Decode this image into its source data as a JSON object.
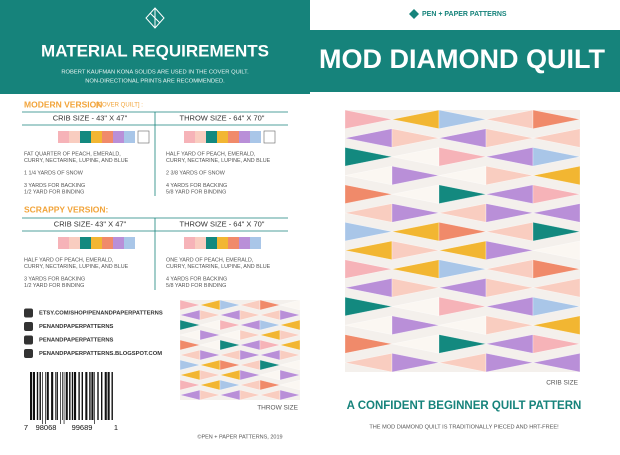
{
  "left": {
    "header": {
      "title": "MATERIAL REQUIREMENTS",
      "note_lines": [
        "ROBERT KAUFMAN KONA SOLIDS ARE USED IN THE COVER QUILT.",
        "NON-DIRECTIONAL PRINTS ARE RECOMMENDED."
      ]
    },
    "modern": {
      "label": "MODERN VERSION",
      "tag": "[COVER QUILT] :",
      "crib": {
        "size": "CRIB SIZE - 43\" X 47\"",
        "items": [
          [
            "FAT QUARTER OF PEACH, EMERALD,",
            "CURRY, NECTARINE, LUPINE, AND BLUE"
          ],
          [
            "1 1/4 YARDS OF SNOW"
          ],
          [
            "3 YARDS FOR BACKING",
            "1/2 YARD FOR BINDING"
          ]
        ]
      },
      "throw": {
        "size": "THROW SIZE - 64\" X 70\"",
        "items": [
          [
            "HALF YARD OF PEACH, EMERALD,",
            "CURRY, NECTARINE, LUPINE, AND BLUE"
          ],
          [
            "2 3/8 YARDS OF SNOW"
          ],
          [
            "4 YARDS FOR BACKING",
            "5/8 YARD FOR BINDING"
          ]
        ]
      }
    },
    "scrappy": {
      "label": "SCRAPPY VERSION:",
      "crib": {
        "size": "CRIB SIZE- 43\" X 47\"",
        "items": [
          [
            "HALF YARD OF PEACH, EMERALD,",
            "CURRY, NECTARINE, LUPINE, AND BLUE"
          ],
          [
            "3 YARDS FOR BACKING",
            "1/2 YARD FOR BINDING"
          ]
        ]
      },
      "throw": {
        "size": "THROW SIZE - 64\" X 70\"",
        "items": [
          [
            "ONE YARD OF PEACH, EMERALD,",
            "CURRY, NECTARINE, LUPINE, AND BLUE"
          ],
          [
            "4 YARDS FOR BACKING",
            "5/8 YARD FOR BINDING"
          ]
        ]
      }
    },
    "links": [
      "ETSY.COM/SHOP/PENANDPAPERPATTERNS",
      "PENANDPAPERPATTERNS",
      "PENANDPAPERPATTERNS",
      "PENANDPAPERPATTERNS.BLOGSPOT.COM"
    ],
    "barcode": [
      "7",
      "98068",
      "99689",
      "1"
    ],
    "throw_caption": "THROW SIZE",
    "copyright": "©PEN + PAPER PATTERNS, 2019"
  },
  "right": {
    "brand": "PEN + PAPER PATTERNS",
    "title": "MOD DIAMOND QUILT",
    "caption": "CRIB SIZE",
    "tagline": "A CONFIDENT BEGINNER QUILT PATTERN",
    "description": "THE MOD DIAMOND QUILT IS TRADITIONALLY PIECED AND HRT-FREE!"
  }
}
